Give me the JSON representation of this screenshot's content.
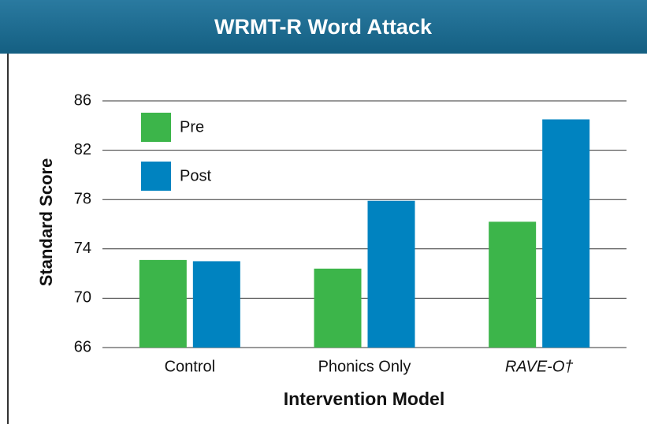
{
  "chart_data": {
    "type": "bar",
    "title": "WRMT-R Word Attack",
    "x_label": "Intervention Model",
    "y_label": "Standard Score",
    "categories": [
      "Control",
      "Phonics Only",
      "RAVE-O†"
    ],
    "series": [
      {
        "name": "Pre",
        "color": "#3cb54a",
        "values": [
          73.1,
          72.4,
          76.2
        ]
      },
      {
        "name": "Post",
        "color": "#0083c0",
        "values": [
          73.0,
          77.9,
          84.5
        ]
      }
    ],
    "ylim": [
      66,
      86
    ],
    "yticks": [
      66,
      70,
      74,
      78,
      82,
      86
    ],
    "grid": true,
    "legend": "top-left"
  }
}
